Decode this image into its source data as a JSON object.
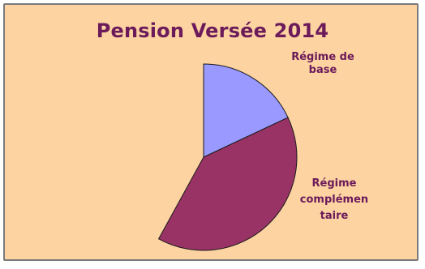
{
  "chart_data": {
    "type": "pie",
    "title": "Pension Versée 2014",
    "slices": [
      {
        "label_lines": [
          "Régime de",
          "base"
        ],
        "value": 18,
        "color": "#9999ff"
      },
      {
        "label_lines": [
          "Régime",
          "complémen",
          "taire"
        ],
        "value": 40,
        "color": "#993366"
      }
    ],
    "background_color": "#fcd3a1"
  }
}
